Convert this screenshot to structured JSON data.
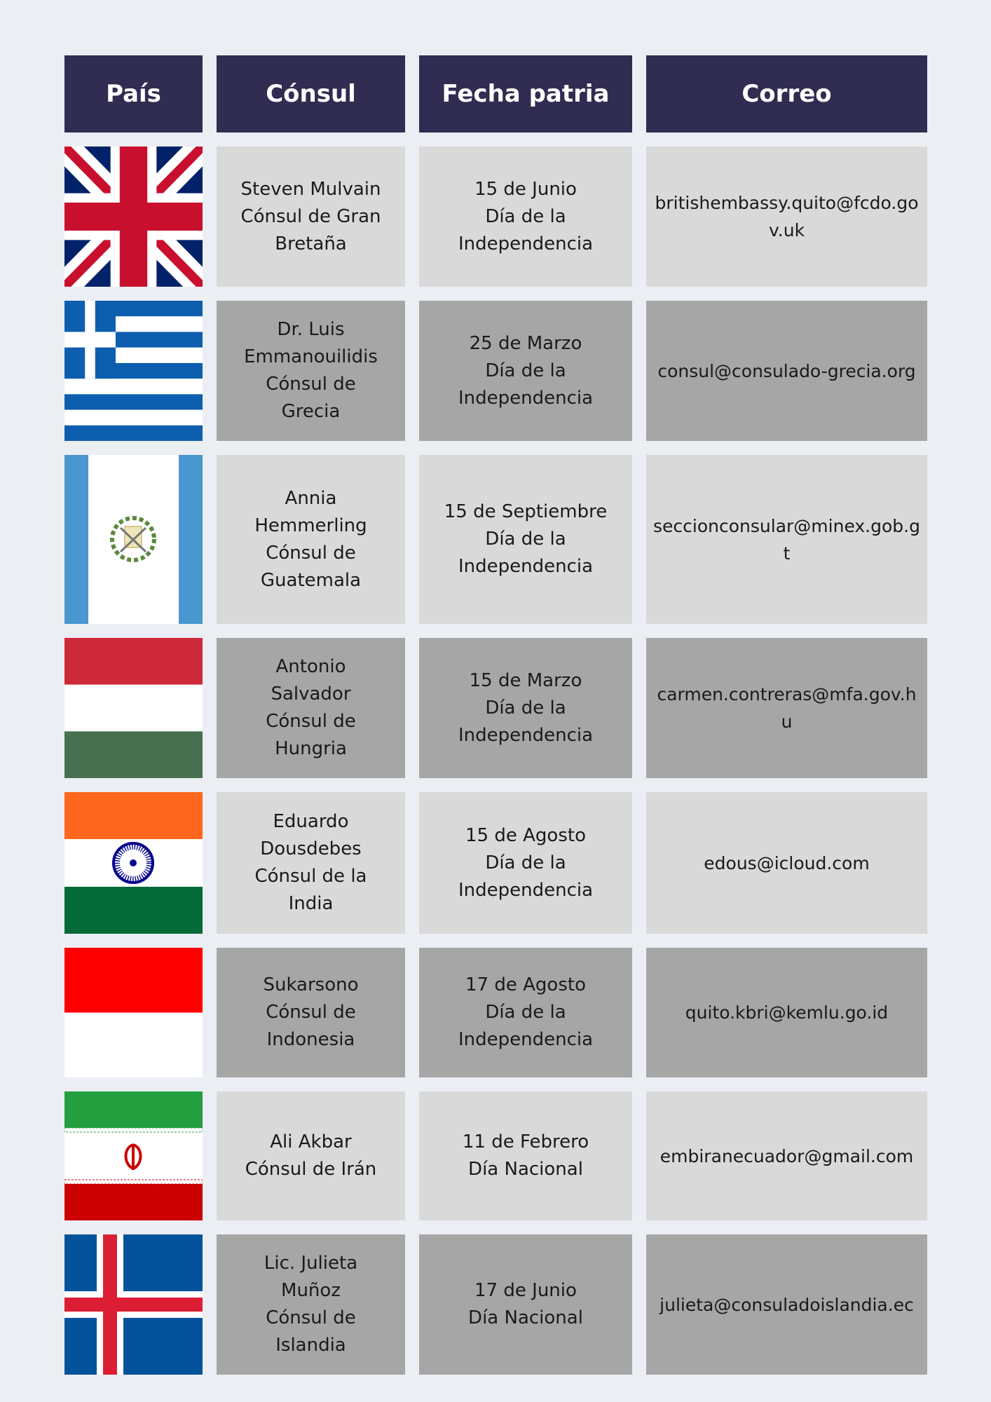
{
  "headers": {
    "pais": "País",
    "consul": "Cónsul",
    "fecha": "Fecha patria",
    "correo": "Correo"
  },
  "colors": {
    "header": "#312c51",
    "row_light": "#d9d9d9",
    "row_dark": "#a6a6a6",
    "background": "#ebeef3"
  },
  "rows": [
    {
      "flag": "uk-flag",
      "consul": "Steven Mulvain\nCónsul de Gran\nBretaña",
      "fecha": "15 de Junio\nDía de la\nIndependencia",
      "correo": "britishembassy.quito@fcdo.gov.uk"
    },
    {
      "flag": "greece-flag",
      "consul": "Dr. Luis\nEmmanouilidis\nCónsul de\nGrecia",
      "fecha": "25 de Marzo\nDía de la\nIndependencia",
      "correo": "consul@consulado-grecia.org"
    },
    {
      "flag": "guatemala-flag",
      "consul": "Annia\nHemmerling\nCónsul de\nGuatemala",
      "fecha": "15 de Septiembre\nDía de la\nIndependencia",
      "correo": "seccionconsular@minex.gob.gt"
    },
    {
      "flag": "hungary-flag",
      "consul": "Antonio\nSalvador\nCónsul de\nHungria",
      "fecha": "15 de Marzo\nDía de la\nIndependencia",
      "correo": "carmen.contreras@mfa.gov.hu"
    },
    {
      "flag": "india-flag",
      "consul": "Eduardo\nDousdebes\nCónsul de la\nIndia",
      "fecha": "15 de Agosto\nDía de la\nIndependencia",
      "correo": "edous@icloud.com"
    },
    {
      "flag": "indonesia-flag",
      "consul": "Sukarsono\nCónsul de\nIndonesia",
      "fecha": "17 de Agosto\nDía de la\nIndependencia",
      "correo": "quito.kbri@kemlu.go.id"
    },
    {
      "flag": "iran-flag",
      "consul": "Ali Akbar\nCónsul de Irán",
      "fecha": "11 de Febrero\nDía Nacional",
      "correo": "embiranecuador@gmail.com"
    },
    {
      "flag": "iceland-flag",
      "consul": "Lic. Julieta\nMuñoz\nCónsul de\nIslandia",
      "fecha": "17 de Junio\nDía Nacional",
      "correo": "julieta@consuladoislandia.ec"
    }
  ]
}
